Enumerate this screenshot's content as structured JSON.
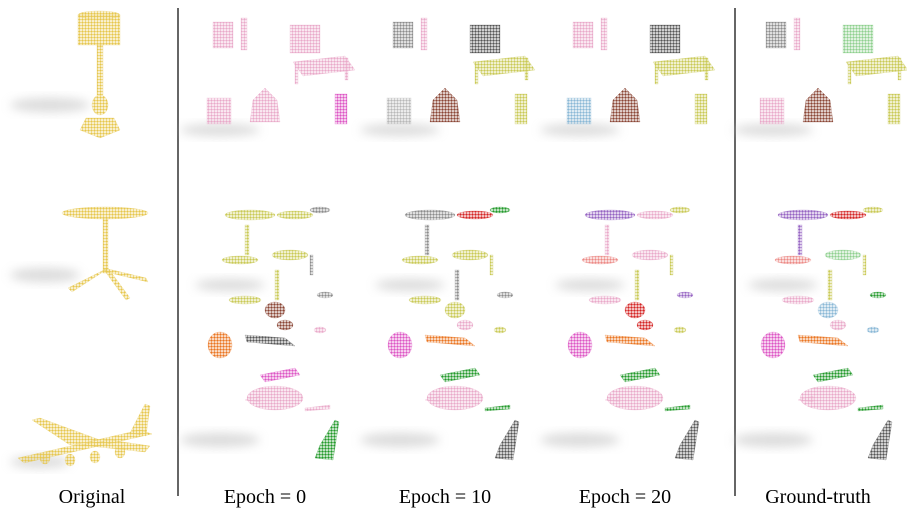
{
  "captions": [
    "Original",
    "Epoch = 0",
    "Epoch = 10",
    "Epoch = 20",
    "Ground-truth"
  ]
}
